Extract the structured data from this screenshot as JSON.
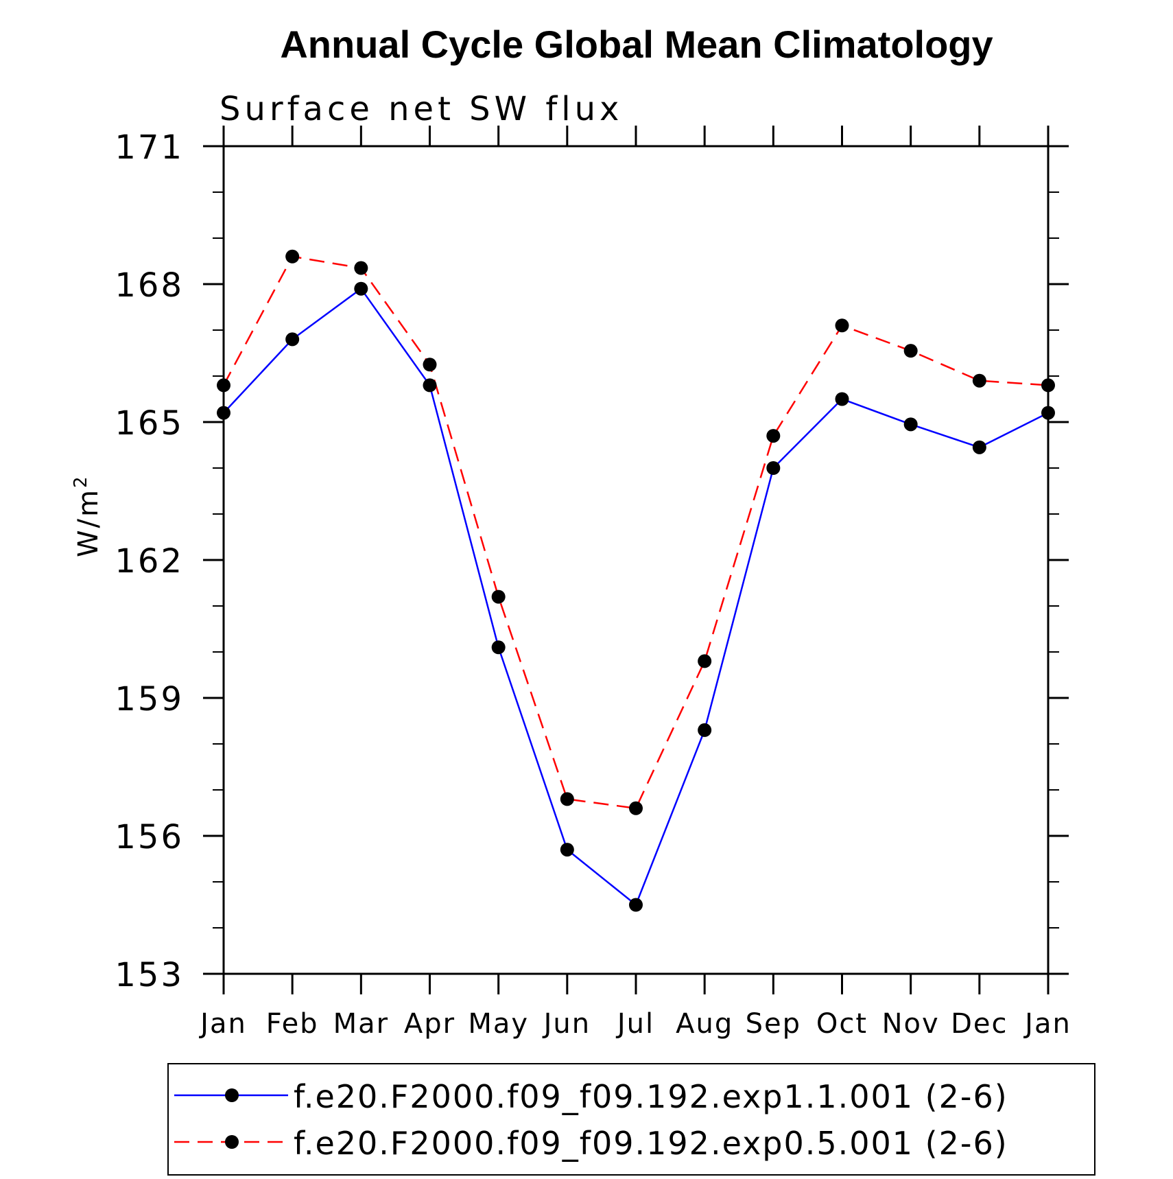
{
  "chart_data": {
    "type": "line",
    "title": "Annual Cycle Global Mean Climatology",
    "subtitle": "Surface net SW flux",
    "ylabel_base": "W/m",
    "ylabel_sup": "2",
    "xlabel": "",
    "categories": [
      "Jan",
      "Feb",
      "Mar",
      "Apr",
      "May",
      "Jun",
      "Jul",
      "Aug",
      "Sep",
      "Oct",
      "Nov",
      "Dec",
      "Jan"
    ],
    "ylim": [
      153,
      171
    ],
    "yticks": [
      "171",
      "168",
      "165",
      "162",
      "159",
      "156",
      "153"
    ],
    "series": [
      {
        "name": "f.e20.F2000.f09_f09.192.exp1.1.001 (2-6)",
        "color": "#0000ff",
        "dash": "solid",
        "values": [
          165.2,
          166.8,
          167.9,
          165.8,
          160.1,
          155.7,
          154.5,
          158.3,
          164.0,
          165.5,
          164.95,
          164.45,
          165.2
        ]
      },
      {
        "name": "f.e20.F2000.f09_f09.192.exp0.5.001 (2-6)",
        "color": "#ff0000",
        "dash": "dashed",
        "values": [
          165.8,
          168.6,
          168.35,
          166.25,
          161.2,
          156.8,
          156.6,
          159.8,
          164.7,
          167.1,
          166.55,
          165.9,
          165.8
        ]
      }
    ],
    "marker_color": "#000000",
    "grid": false,
    "legend_position": "bottom"
  }
}
